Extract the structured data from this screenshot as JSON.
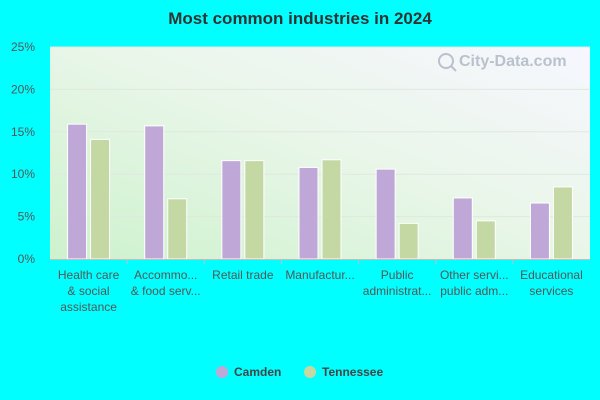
{
  "chart_data": {
    "type": "bar",
    "title": "Most common industries in 2024",
    "categories": [
      [
        "Health care",
        "& social",
        "assistance"
      ],
      [
        "Accommo...",
        "& food serv..."
      ],
      [
        "Retail trade"
      ],
      [
        "Manufactur..."
      ],
      [
        "Public",
        "administrat..."
      ],
      [
        "Other servi...",
        "public adm..."
      ],
      [
        "Educational",
        "services"
      ]
    ],
    "series": [
      {
        "name": "Camden",
        "color": "#bfa8d8",
        "values": [
          15.9,
          15.7,
          11.6,
          10.8,
          10.6,
          7.2,
          6.6
        ]
      },
      {
        "name": "Tennessee",
        "color": "#c4d8a4",
        "values": [
          14.1,
          7.1,
          11.6,
          11.7,
          4.2,
          4.5,
          8.5
        ]
      }
    ],
    "ylim": [
      0,
      25
    ],
    "yticks": [
      "0%",
      "5%",
      "10%",
      "15%",
      "20%",
      "25%"
    ],
    "ytick_values": [
      0,
      5,
      10,
      15,
      20,
      25
    ],
    "grid": true,
    "legend_placement": "bottom-center",
    "watermark": "City-Data.com"
  }
}
